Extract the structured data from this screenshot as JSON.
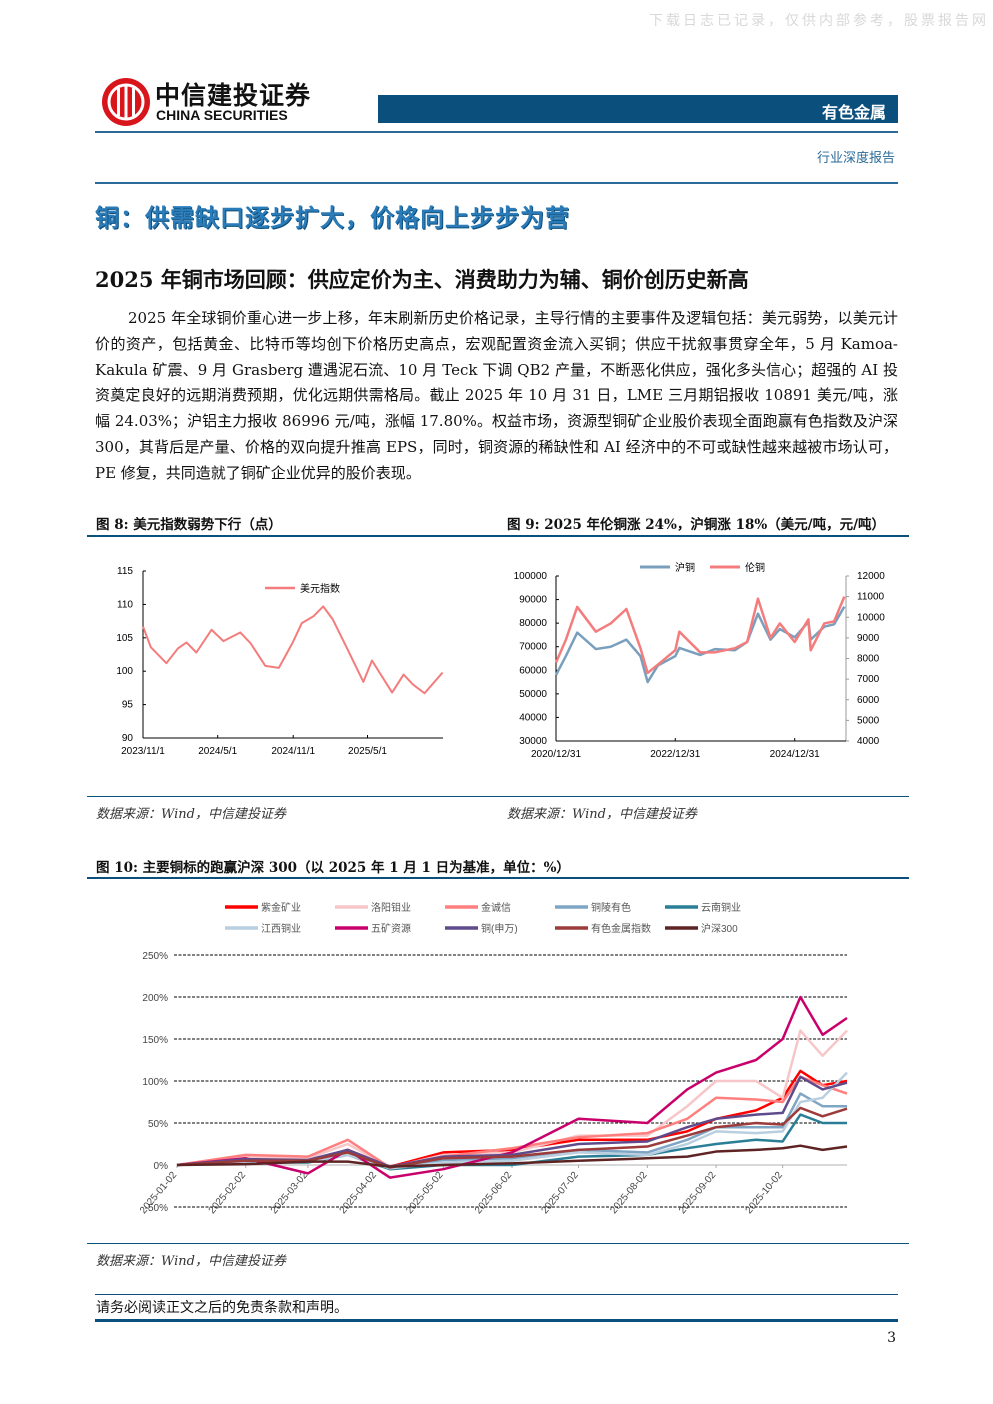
{
  "watermark": "下载日志已记录，仅供内部参考，股票报告网",
  "header": {
    "logo_cn": "中信建投证券",
    "logo_en": "CHINA SECURITIES",
    "sector": "有色金属",
    "report_type": "行业深度报告"
  },
  "section_title": "铜：供需缺口逐步扩大，价格向上步步为营",
  "subsection_title": "2025 年铜市场回顾：供应定价为主、消费助力为辅、铜价创历史新高",
  "paragraph": "2025 年全球铜价重心进一步上移，年末刷新历史价格记录，主导行情的主要事件及逻辑包括：美元弱势，以美元计价的资产，包括黄金、比特币等均创下价格历史高点，宏观配置资金流入买铜；供应干扰叙事贯穿全年，5 月 Kamoa-Kakula 矿震、9 月 Grasberg 遭遇泥石流、10 月 Teck 下调 QB2 产量，不断恶化供应，强化多头信心；超强的 AI 投资奠定良好的远期消费预期，优化远期供需格局。截止 2025 年 10 月 31 日，LME 三月期铝报收 10891 美元/吨，涨幅 24.03%；沪铝主力报收 86996 元/吨，涨幅 17.80%。权益市场，资源型铜矿企业股价表现全面跑赢有色指数及沪深 300，其背后是产量、价格的双向提升推高 EPS，同时，铜资源的稀缺性和 AI 经济中的不可或缺性越来越被市场认可，PE 修复，共同造就了铜矿企业优异的股价表现。",
  "figures": {
    "fig8": {
      "title": "图 8: 美元指数弱势下行（点）",
      "source": "数据来源：Wind，中信建投证券"
    },
    "fig9": {
      "title": "图 9: 2025 年伦铜涨 24%，沪铜涨 18%（美元/吨，元/吨）",
      "source": "数据来源：Wind，中信建投证券"
    },
    "fig10": {
      "title": "图 10: 主要铜标的跑赢沪深 300（以 2025 年 1 月 1 日为基准，单位：%）",
      "source": "数据来源：Wind，中信建投证券"
    }
  },
  "chart_data": [
    {
      "type": "line",
      "id": "fig8",
      "ylim": [
        90,
        115
      ],
      "yticks": [
        "115",
        "110",
        "105",
        "100",
        "95",
        "90"
      ],
      "xticks": [
        "2023/11/1",
        "2024/5/1",
        "2024/11/1",
        "2025/5/1"
      ],
      "grid": false,
      "legend": "top-center",
      "series": [
        {
          "name": "美元指数",
          "color": "#f47c7c",
          "x": [
            "2023-11-01",
            "2023-11-20",
            "2023-12-28",
            "2024-01-25",
            "2024-02-15",
            "2024-03-10",
            "2024-04-16",
            "2024-05-15",
            "2024-06-25",
            "2024-07-20",
            "2024-08-25",
            "2024-09-27",
            "2024-10-30",
            "2024-11-22",
            "2024-12-20",
            "2025-01-13",
            "2025-02-05",
            "2025-03-10",
            "2025-04-21",
            "2025-05-12",
            "2025-06-30",
            "2025-07-28",
            "2025-08-20",
            "2025-09-17",
            "2025-10-31"
          ],
          "y": [
            106.7,
            103.6,
            101.2,
            103.4,
            104.3,
            102.8,
            106.2,
            104.5,
            105.8,
            104.2,
            100.8,
            100.5,
            104.2,
            107.2,
            108.2,
            109.7,
            107.8,
            103.7,
            98.4,
            101.6,
            96.8,
            99.5,
            98.0,
            96.7,
            99.8
          ]
        }
      ]
    },
    {
      "type": "line",
      "id": "fig9",
      "xticks": [
        "2020/12/31",
        "2022/12/31",
        "2024/12/31"
      ],
      "ylim_left": [
        30000,
        100000
      ],
      "yticks_left": [
        "100000",
        "90000",
        "80000",
        "70000",
        "60000",
        "50000",
        "40000",
        "30000"
      ],
      "ylim_right": [
        4000,
        12000
      ],
      "yticks_right": [
        "12000",
        "11000",
        "10000",
        "9000",
        "8000",
        "7000",
        "6000",
        "5000",
        "4000"
      ],
      "legend": "top",
      "x": [
        "2020-12-31",
        "2021-03-01",
        "2021-05-10",
        "2021-09-01",
        "2021-12-01",
        "2022-03-07",
        "2022-06-01",
        "2022-07-15",
        "2022-09-15",
        "2022-12-31",
        "2023-01-25",
        "2023-06-01",
        "2023-09-01",
        "2023-12-31",
        "2024-03-15",
        "2024-05-20",
        "2024-08-05",
        "2024-10-01",
        "2024-12-31",
        "2025-03-25",
        "2025-04-08",
        "2025-06-30",
        "2025-08-29",
        "2025-10-31"
      ],
      "series": [
        {
          "name": "沪铜",
          "axis": "left",
          "color": "#7a9fbd",
          "y": [
            58000,
            66000,
            76000,
            69000,
            70000,
            73000,
            66000,
            55000,
            62000,
            66000,
            69500,
            66500,
            69000,
            68500,
            72000,
            84000,
            73000,
            77500,
            74000,
            80500,
            73000,
            78500,
            79500,
            87000
          ]
        },
        {
          "name": "伦铜",
          "axis": "right",
          "color": "#f47c7c",
          "y": [
            7800,
            8900,
            10500,
            9300,
            9700,
            10400,
            8500,
            7300,
            7700,
            8400,
            9300,
            8300,
            8300,
            8500,
            8800,
            10900,
            9000,
            9700,
            8800,
            9900,
            8400,
            9700,
            9800,
            11000
          ]
        }
      ]
    },
    {
      "type": "line",
      "id": "fig10",
      "ylim": [
        -50,
        250
      ],
      "yticks": [
        "250%",
        "200%",
        "150%",
        "100%",
        "50%",
        "0%",
        "-50%"
      ],
      "grid": "dashed",
      "xticks": [
        "2025-01-02",
        "2025-02-02",
        "2025-03-02",
        "2025-04-02",
        "2025-05-02",
        "2025-06-02",
        "2025-07-02",
        "2025-08-02",
        "2025-09-02",
        "2025-10-02"
      ],
      "legend": "top",
      "x": [
        "2025-01-02",
        "2025-02-02",
        "2025-03-02",
        "2025-03-20",
        "2025-04-08",
        "2025-05-02",
        "2025-06-02",
        "2025-07-02",
        "2025-08-02",
        "2025-08-20",
        "2025-09-02",
        "2025-09-20",
        "2025-10-02",
        "2025-10-10",
        "2025-10-20",
        "2025-10-31"
      ],
      "series": [
        {
          "name": "紫金矿业",
          "color": "#ff0000",
          "y": [
            0,
            8,
            5,
            18,
            -2,
            15,
            18,
            30,
            30,
            40,
            55,
            65,
            80,
            112,
            95,
            100
          ]
        },
        {
          "name": "洛阳钼业",
          "color": "#f7c6c9",
          "y": [
            0,
            10,
            8,
            25,
            -3,
            12,
            15,
            35,
            35,
            70,
            100,
            100,
            80,
            160,
            130,
            160
          ]
        },
        {
          "name": "金诚信",
          "color": "#ff7f7f",
          "y": [
            0,
            12,
            10,
            30,
            -3,
            10,
            20,
            33,
            38,
            55,
            80,
            78,
            75,
            105,
            95,
            85
          ]
        },
        {
          "name": "铜陵有色",
          "color": "#7ea6c4",
          "y": [
            0,
            5,
            5,
            15,
            -3,
            6,
            8,
            18,
            15,
            30,
            45,
            45,
            45,
            85,
            70,
            70
          ]
        },
        {
          "name": "云南铜业",
          "color": "#2a7f96",
          "y": [
            0,
            3,
            3,
            12,
            -5,
            0,
            0,
            10,
            12,
            20,
            25,
            30,
            28,
            60,
            50,
            50
          ]
        },
        {
          "name": "江西铜业",
          "color": "#b9cfe0",
          "y": [
            0,
            4,
            4,
            12,
            -4,
            3,
            5,
            15,
            12,
            25,
            40,
            38,
            40,
            75,
            80,
            110
          ]
        },
        {
          "name": "五矿资源",
          "color": "#c9006b",
          "y": [
            0,
            8,
            -10,
            18,
            -15,
            -5,
            15,
            55,
            50,
            90,
            110,
            125,
            150,
            200,
            155,
            175
          ]
        },
        {
          "name": "铜(申万)",
          "color": "#5f4b8b",
          "y": [
            0,
            7,
            6,
            18,
            -2,
            10,
            12,
            25,
            28,
            45,
            55,
            60,
            62,
            105,
            90,
            98
          ]
        },
        {
          "name": "有色金属指数",
          "color": "#9c3b3b",
          "y": [
            0,
            5,
            5,
            15,
            -3,
            8,
            10,
            18,
            22,
            35,
            45,
            50,
            48,
            68,
            58,
            67
          ]
        },
        {
          "name": "沪深300",
          "color": "#5e2424",
          "y": [
            0,
            1,
            4,
            4,
            -2,
            0,
            2,
            5,
            8,
            10,
            16,
            18,
            20,
            23,
            18,
            22
          ]
        }
      ]
    }
  ],
  "footer": {
    "disclaimer": "请务必阅读正文之后的免责条款和声明。",
    "page": "3"
  }
}
